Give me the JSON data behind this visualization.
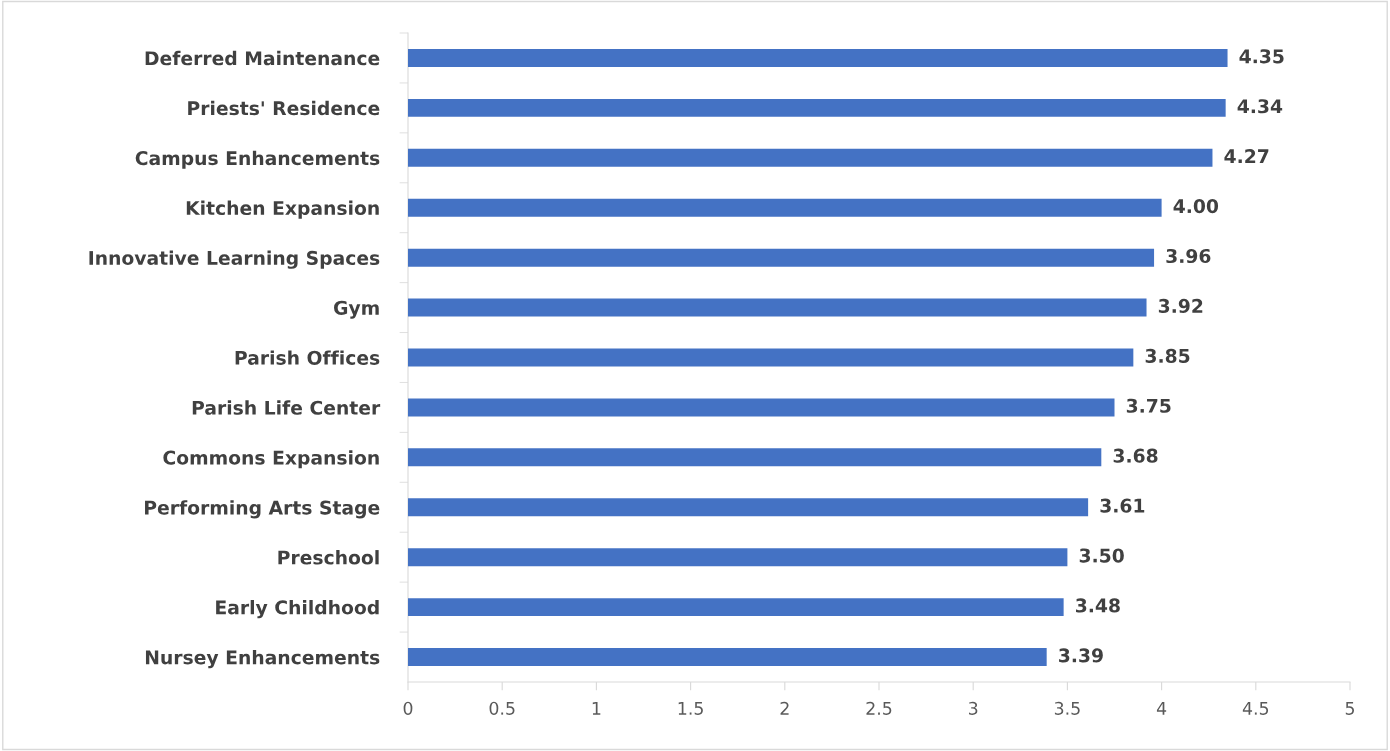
{
  "chart_data": {
    "type": "bar",
    "orientation": "horizontal",
    "categories": [
      "Deferred Maintenance",
      "Priests' Residence",
      "Campus Enhancements",
      "Kitchen Expansion",
      "Innovative Learning Spaces",
      "Gym",
      "Parish Offices",
      "Parish Life Center",
      "Commons Expansion",
      "Performing Arts Stage",
      "Preschool",
      "Early Childhood",
      "Nursey Enhancements"
    ],
    "values": [
      4.35,
      4.34,
      4.27,
      4.0,
      3.96,
      3.92,
      3.85,
      3.75,
      3.68,
      3.61,
      3.5,
      3.48,
      3.39
    ],
    "value_labels": [
      "4.35",
      "4.34",
      "4.27",
      "4.00",
      "3.96",
      "3.92",
      "3.85",
      "3.75",
      "3.68",
      "3.61",
      "3.50",
      "3.48",
      "3.39"
    ],
    "color": "#4472c4",
    "xlim": [
      0,
      5
    ],
    "xticks": [
      0,
      0.5,
      1,
      1.5,
      2,
      2.5,
      3,
      3.5,
      4,
      4.5,
      5
    ],
    "grid": false,
    "legend": false
  }
}
